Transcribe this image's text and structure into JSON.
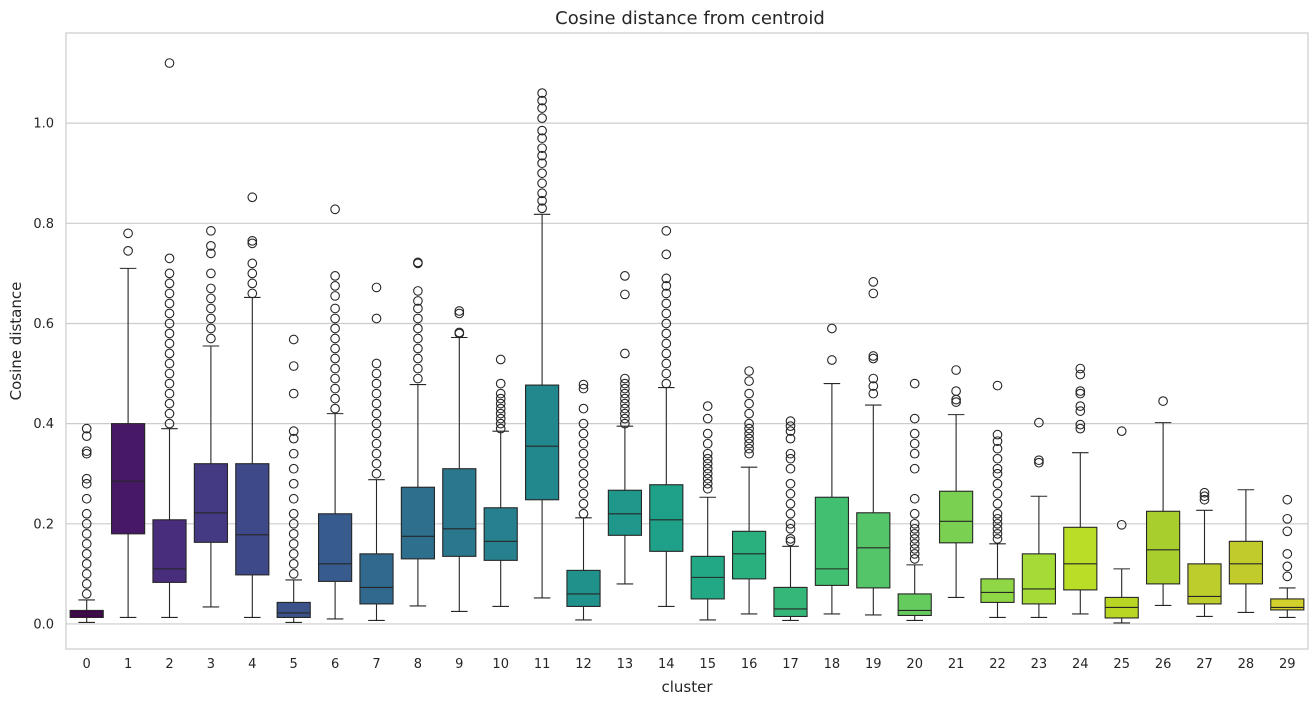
{
  "chart_data": {
    "type": "box",
    "title": "Cosine distance from centroid",
    "xlabel": "cluster",
    "ylabel": "Cosine distance",
    "ylim": [
      -0.05,
      1.18
    ],
    "yticks": [
      "0.0",
      "0.2",
      "0.4",
      "0.6",
      "0.8",
      "1.0"
    ],
    "grid": true,
    "palette": "viridis",
    "series": [
      {
        "cluster": "0",
        "color": "#440154",
        "q1": 0.013,
        "median": 0.02,
        "q3": 0.027,
        "whisker_low": 0.003,
        "whisker_high": 0.048,
        "outliers": [
          0.06,
          0.08,
          0.1,
          0.12,
          0.14,
          0.16,
          0.18,
          0.2,
          0.22,
          0.25,
          0.28,
          0.29,
          0.34,
          0.345,
          0.375,
          0.39
        ]
      },
      {
        "cluster": "1",
        "color": "#461865",
        "q1": 0.18,
        "median": 0.285,
        "q3": 0.4,
        "whisker_low": 0.013,
        "whisker_high": 0.71,
        "outliers": [
          0.745,
          0.78
        ]
      },
      {
        "cluster": "2",
        "color": "#472d7b",
        "q1": 0.083,
        "median": 0.11,
        "q3": 0.208,
        "whisker_low": 0.013,
        "whisker_high": 0.39,
        "outliers": [
          0.4,
          0.42,
          0.44,
          0.46,
          0.48,
          0.5,
          0.52,
          0.54,
          0.56,
          0.58,
          0.6,
          0.62,
          0.64,
          0.66,
          0.68,
          0.7,
          0.73,
          1.12
        ]
      },
      {
        "cluster": "3",
        "color": "#443a83",
        "q1": 0.163,
        "median": 0.222,
        "q3": 0.32,
        "whisker_low": 0.034,
        "whisker_high": 0.555,
        "outliers": [
          0.57,
          0.59,
          0.61,
          0.63,
          0.65,
          0.67,
          0.7,
          0.74,
          0.755,
          0.785
        ]
      },
      {
        "cluster": "4",
        "color": "#3e4989",
        "q1": 0.098,
        "median": 0.178,
        "q3": 0.32,
        "whisker_low": 0.013,
        "whisker_high": 0.652,
        "outliers": [
          0.66,
          0.68,
          0.7,
          0.72,
          0.76,
          0.765,
          0.852
        ]
      },
      {
        "cluster": "5",
        "color": "#3b528b",
        "q1": 0.013,
        "median": 0.022,
        "q3": 0.043,
        "whisker_low": 0.003,
        "whisker_high": 0.088,
        "outliers": [
          0.1,
          0.12,
          0.14,
          0.16,
          0.18,
          0.2,
          0.22,
          0.25,
          0.28,
          0.31,
          0.34,
          0.37,
          0.385,
          0.46,
          0.515,
          0.568
        ]
      },
      {
        "cluster": "6",
        "color": "#375b8d",
        "q1": 0.085,
        "median": 0.12,
        "q3": 0.22,
        "whisker_low": 0.01,
        "whisker_high": 0.42,
        "outliers": [
          0.43,
          0.45,
          0.47,
          0.49,
          0.51,
          0.53,
          0.55,
          0.57,
          0.59,
          0.61,
          0.63,
          0.655,
          0.675,
          0.695,
          0.828
        ]
      },
      {
        "cluster": "7",
        "color": "#31688e",
        "q1": 0.04,
        "median": 0.073,
        "q3": 0.14,
        "whisker_low": 0.007,
        "whisker_high": 0.288,
        "outliers": [
          0.3,
          0.32,
          0.34,
          0.36,
          0.38,
          0.4,
          0.42,
          0.44,
          0.46,
          0.48,
          0.5,
          0.52,
          0.61,
          0.672
        ]
      },
      {
        "cluster": "8",
        "color": "#2e6f8e",
        "q1": 0.13,
        "median": 0.175,
        "q3": 0.273,
        "whisker_low": 0.036,
        "whisker_high": 0.478,
        "outliers": [
          0.49,
          0.51,
          0.53,
          0.55,
          0.57,
          0.59,
          0.61,
          0.63,
          0.645,
          0.665,
          0.72,
          0.722
        ]
      },
      {
        "cluster": "9",
        "color": "#2a788e",
        "q1": 0.135,
        "median": 0.19,
        "q3": 0.31,
        "whisker_low": 0.025,
        "whisker_high": 0.572,
        "outliers": [
          0.58,
          0.582,
          0.62,
          0.625
        ]
      },
      {
        "cluster": "10",
        "color": "#27808e",
        "q1": 0.127,
        "median": 0.165,
        "q3": 0.232,
        "whisker_low": 0.035,
        "whisker_high": 0.385,
        "outliers": [
          0.39,
          0.4,
          0.41,
          0.42,
          0.43,
          0.44,
          0.45,
          0.46,
          0.48,
          0.528
        ]
      },
      {
        "cluster": "11",
        "color": "#23888e",
        "q1": 0.248,
        "median": 0.355,
        "q3": 0.477,
        "whisker_low": 0.052,
        "whisker_high": 0.818,
        "outliers": [
          0.83,
          0.845,
          0.86,
          0.88,
          0.9,
          0.92,
          0.935,
          0.95,
          0.97,
          0.985,
          1.01,
          1.03,
          1.045,
          1.06
        ]
      },
      {
        "cluster": "12",
        "color": "#21918c",
        "q1": 0.035,
        "median": 0.06,
        "q3": 0.107,
        "whisker_low": 0.008,
        "whisker_high": 0.212,
        "outliers": [
          0.22,
          0.24,
          0.26,
          0.28,
          0.3,
          0.32,
          0.34,
          0.36,
          0.38,
          0.4,
          0.43,
          0.47,
          0.478
        ]
      },
      {
        "cluster": "13",
        "color": "#1f988b",
        "q1": 0.177,
        "median": 0.22,
        "q3": 0.267,
        "whisker_low": 0.08,
        "whisker_high": 0.395,
        "outliers": [
          0.4,
          0.41,
          0.42,
          0.43,
          0.44,
          0.45,
          0.46,
          0.47,
          0.48,
          0.49,
          0.54,
          0.658,
          0.695
        ]
      },
      {
        "cluster": "14",
        "color": "#1fa088",
        "q1": 0.145,
        "median": 0.208,
        "q3": 0.278,
        "whisker_low": 0.035,
        "whisker_high": 0.472,
        "outliers": [
          0.48,
          0.5,
          0.52,
          0.54,
          0.56,
          0.58,
          0.6,
          0.62,
          0.64,
          0.66,
          0.675,
          0.69,
          0.738,
          0.785
        ]
      },
      {
        "cluster": "15",
        "color": "#22a884",
        "q1": 0.05,
        "median": 0.093,
        "q3": 0.135,
        "whisker_low": 0.008,
        "whisker_high": 0.253,
        "outliers": [
          0.27,
          0.28,
          0.29,
          0.3,
          0.31,
          0.32,
          0.33,
          0.34,
          0.36,
          0.38,
          0.41,
          0.435
        ]
      },
      {
        "cluster": "16",
        "color": "#2ab07f",
        "q1": 0.09,
        "median": 0.14,
        "q3": 0.185,
        "whisker_low": 0.02,
        "whisker_high": 0.313,
        "outliers": [
          0.34,
          0.35,
          0.36,
          0.37,
          0.38,
          0.39,
          0.4,
          0.42,
          0.44,
          0.46,
          0.485,
          0.505
        ]
      },
      {
        "cluster": "17",
        "color": "#35b779",
        "q1": 0.015,
        "median": 0.03,
        "q3": 0.073,
        "whisker_low": 0.007,
        "whisker_high": 0.155,
        "outliers": [
          0.165,
          0.17,
          0.19,
          0.2,
          0.22,
          0.24,
          0.26,
          0.28,
          0.31,
          0.33,
          0.34,
          0.37,
          0.385,
          0.395,
          0.405
        ]
      },
      {
        "cluster": "18",
        "color": "#43bf71",
        "q1": 0.077,
        "median": 0.11,
        "q3": 0.253,
        "whisker_low": 0.02,
        "whisker_high": 0.48,
        "outliers": [
          0.527,
          0.59
        ]
      },
      {
        "cluster": "19",
        "color": "#54c568",
        "q1": 0.072,
        "median": 0.152,
        "q3": 0.222,
        "whisker_low": 0.018,
        "whisker_high": 0.437,
        "outliers": [
          0.46,
          0.475,
          0.49,
          0.53,
          0.535,
          0.66,
          0.683
        ]
      },
      {
        "cluster": "20",
        "color": "#66cb5d",
        "q1": 0.017,
        "median": 0.027,
        "q3": 0.06,
        "whisker_low": 0.007,
        "whisker_high": 0.118,
        "outliers": [
          0.13,
          0.14,
          0.15,
          0.16,
          0.17,
          0.18,
          0.19,
          0.2,
          0.22,
          0.25,
          0.31,
          0.34,
          0.36,
          0.38,
          0.41,
          0.48
        ]
      },
      {
        "cluster": "21",
        "color": "#7ad151",
        "q1": 0.162,
        "median": 0.205,
        "q3": 0.265,
        "whisker_low": 0.053,
        "whisker_high": 0.418,
        "outliers": [
          0.443,
          0.448,
          0.465,
          0.507
        ]
      },
      {
        "cluster": "22",
        "color": "#8fd744",
        "q1": 0.043,
        "median": 0.063,
        "q3": 0.09,
        "whisker_low": 0.013,
        "whisker_high": 0.16,
        "outliers": [
          0.17,
          0.18,
          0.19,
          0.2,
          0.21,
          0.22,
          0.24,
          0.26,
          0.28,
          0.3,
          0.31,
          0.33,
          0.35,
          0.365,
          0.378,
          0.476
        ]
      },
      {
        "cluster": "23",
        "color": "#a5db36",
        "q1": 0.04,
        "median": 0.07,
        "q3": 0.14,
        "whisker_low": 0.013,
        "whisker_high": 0.255,
        "outliers": [
          0.322,
          0.327,
          0.402
        ]
      },
      {
        "cluster": "24",
        "color": "#bade28",
        "q1": 0.068,
        "median": 0.12,
        "q3": 0.193,
        "whisker_low": 0.02,
        "whisker_high": 0.342,
        "outliers": [
          0.39,
          0.398,
          0.425,
          0.435,
          0.46,
          0.465,
          0.498,
          0.51
        ]
      },
      {
        "cluster": "25",
        "color": "#b8d623",
        "q1": 0.012,
        "median": 0.033,
        "q3": 0.053,
        "whisker_low": 0.002,
        "whisker_high": 0.11,
        "outliers": [
          0.198,
          0.385
        ]
      },
      {
        "cluster": "26",
        "color": "#a8ce2e",
        "q1": 0.08,
        "median": 0.148,
        "q3": 0.225,
        "whisker_low": 0.037,
        "whisker_high": 0.402,
        "outliers": [
          0.445
        ]
      },
      {
        "cluster": "27",
        "color": "#bdce2c",
        "q1": 0.04,
        "median": 0.055,
        "q3": 0.12,
        "whisker_low": 0.015,
        "whisker_high": 0.227,
        "outliers": [
          0.248,
          0.255,
          0.262
        ]
      },
      {
        "cluster": "28",
        "color": "#c2cb2c",
        "q1": 0.08,
        "median": 0.12,
        "q3": 0.165,
        "whisker_low": 0.023,
        "whisker_high": 0.268,
        "outliers": []
      },
      {
        "cluster": "29",
        "color": "#d2d02a",
        "q1": 0.028,
        "median": 0.033,
        "q3": 0.05,
        "whisker_low": 0.013,
        "whisker_high": 0.072,
        "outliers": [
          0.095,
          0.115,
          0.14,
          0.185,
          0.21,
          0.248
        ]
      }
    ]
  }
}
